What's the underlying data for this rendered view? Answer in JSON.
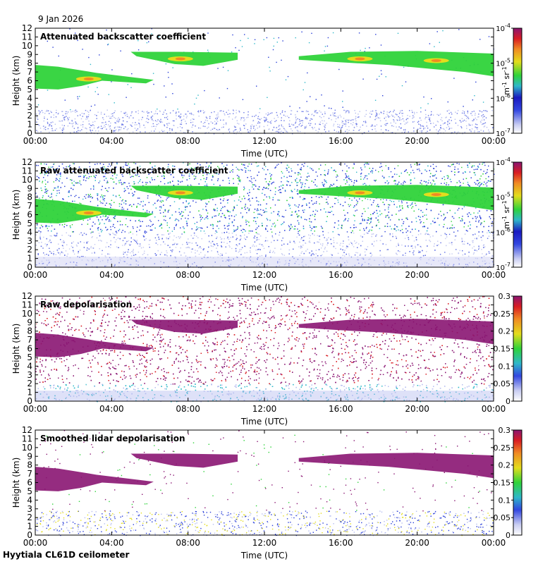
{
  "header": {
    "date": "9 Jan 2026"
  },
  "footer": {
    "site": "Hyytiala CL61D ceilometer"
  },
  "colors": {
    "background": "#ffffff",
    "cloud_green": "#2fd33a",
    "cloud_yellow": "#e3dd1d",
    "cloud_orange": "#f08a24",
    "noise_blue": "#2a3fd8",
    "depol_purple": "#8a1572"
  },
  "chart_data": [
    {
      "type": "heatmap",
      "title": "Attenuated backscatter coefficient",
      "xlabel": "Time (UTC)",
      "ylabel": "Height (km)",
      "x_ticks": [
        "00:00",
        "04:00",
        "08:00",
        "12:00",
        "16:00",
        "20:00",
        "00:00"
      ],
      "y_ticks": [
        "0",
        "1",
        "2",
        "3",
        "4",
        "5",
        "6",
        "7",
        "8",
        "9",
        "10",
        "11",
        "12"
      ],
      "xlim_hours": [
        0,
        24
      ],
      "ylim_km": [
        0,
        12
      ],
      "colorbar": {
        "scale": "log",
        "ticks": [
          "10-7",
          "10-6",
          "10-5",
          "10-4"
        ],
        "exponents": [
          -7,
          -6,
          -5,
          -4
        ],
        "unit": "m-1 sr-1"
      },
      "features": [
        {
          "name": "low-level aerosol",
          "time_range": [
            0,
            24
          ],
          "height_range_km": [
            0,
            2.6
          ]
        },
        {
          "name": "cirrus layer 1",
          "time_range": [
            0,
            6.2
          ],
          "height_range_km": [
            4.8,
            7.8
          ]
        },
        {
          "name": "cirrus layer 2",
          "time_range": [
            5,
            10.6
          ],
          "height_range_km": [
            7.5,
            9.3
          ]
        },
        {
          "name": "cirrus layer 3",
          "time_range": [
            13.8,
            24
          ],
          "height_range_km": [
            6.5,
            9.2
          ]
        }
      ]
    },
    {
      "type": "heatmap",
      "title": "Raw attenuated backscatter coefficient",
      "xlabel": "Time (UTC)",
      "ylabel": "Height (km)",
      "x_ticks": [
        "00:00",
        "04:00",
        "08:00",
        "12:00",
        "16:00",
        "20:00",
        "00:00"
      ],
      "y_ticks": [
        "0",
        "1",
        "2",
        "3",
        "4",
        "5",
        "6",
        "7",
        "8",
        "9",
        "10",
        "11",
        "12"
      ],
      "xlim_hours": [
        0,
        24
      ],
      "ylim_km": [
        0,
        12
      ],
      "colorbar": {
        "scale": "log",
        "ticks": [
          "10-7",
          "10-6",
          "10-5",
          "10-4"
        ],
        "exponents": [
          -7,
          -6,
          -5,
          -4
        ],
        "unit": "m-1 sr-1"
      }
    },
    {
      "type": "heatmap",
      "title": "Raw depolarisation",
      "xlabel": "Time (UTC)",
      "ylabel": "Height (km)",
      "x_ticks": [
        "00:00",
        "04:00",
        "08:00",
        "12:00",
        "16:00",
        "20:00",
        "00:00"
      ],
      "y_ticks": [
        "0",
        "1",
        "2",
        "3",
        "4",
        "5",
        "6",
        "7",
        "8",
        "9",
        "10",
        "11",
        "12"
      ],
      "xlim_hours": [
        0,
        24
      ],
      "ylim_km": [
        0,
        12
      ],
      "colorbar": {
        "scale": "linear",
        "ticks": [
          "0",
          "0.05",
          "0.1",
          "0.15",
          "0.2",
          "0.25",
          "0.3"
        ],
        "range": [
          0,
          0.3
        ]
      }
    },
    {
      "type": "heatmap",
      "title": "Smoothed lidar depolarisation",
      "xlabel": "Time (UTC)",
      "ylabel": "Height (km)",
      "x_ticks": [
        "00:00",
        "04:00",
        "08:00",
        "12:00",
        "16:00",
        "20:00",
        "00:00"
      ],
      "y_ticks": [
        "0",
        "1",
        "2",
        "3",
        "4",
        "5",
        "6",
        "7",
        "8",
        "9",
        "10",
        "11",
        "12"
      ],
      "xlim_hours": [
        0,
        24
      ],
      "ylim_km": [
        0,
        12
      ],
      "colorbar": {
        "scale": "linear",
        "ticks": [
          "0",
          "0.05",
          "0.1",
          "0.15",
          "0.2",
          "0.25",
          "0.3"
        ],
        "range": [
          0,
          0.3
        ]
      }
    }
  ]
}
